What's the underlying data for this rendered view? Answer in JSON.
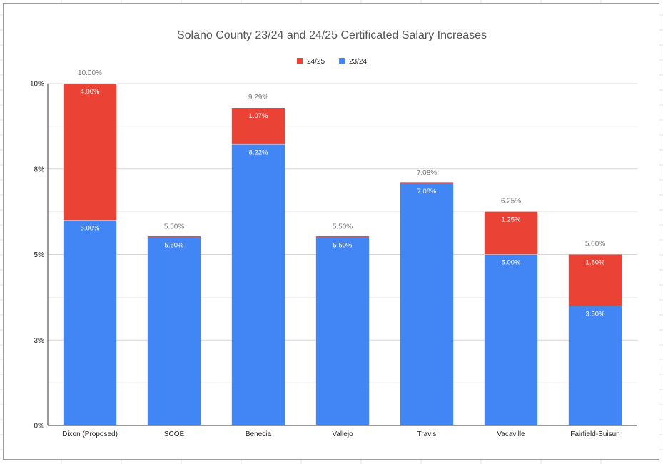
{
  "chart_data": {
    "type": "bar",
    "stacked": true,
    "title": "Solano County 23/24 and 24/25 Certificated Salary Increases",
    "xlabel": "",
    "ylabel": "",
    "ylim": [
      0,
      10
    ],
    "yticks": [
      0,
      2.5,
      5,
      7.5,
      10
    ],
    "ytick_labels": [
      "0%",
      "3%",
      "5%",
      "8%",
      "10%"
    ],
    "grid": true,
    "legend_position": "top",
    "categories": [
      "Dixon (Proposed)",
      "SCOE",
      "Benecia",
      "Vallejo",
      "Travis",
      "Vacaville",
      "Fairfield-Suisun"
    ],
    "series": [
      {
        "name": "23/24",
        "color": "#4285f4",
        "values": [
          6.0,
          5.5,
          8.22,
          5.5,
          7.08,
          5.0,
          3.5
        ],
        "labels": [
          "6.00%",
          "5.50%",
          "8.22%",
          "5.50%",
          "7.08%",
          "5.00%",
          "3.50%"
        ]
      },
      {
        "name": "24/25",
        "color": "#ea4335",
        "values": [
          4.0,
          0,
          1.07,
          0,
          0,
          1.25,
          1.5
        ],
        "labels": [
          "4.00%",
          "",
          "1.07%",
          "",
          "",
          "1.25%",
          "1.50%"
        ]
      }
    ],
    "totals": [
      "10.00%",
      "5.50%",
      "9.29%",
      "5.50%",
      "7.08%",
      "6.25%",
      "5.00%"
    ],
    "legend_order": [
      "24/25",
      "23/24"
    ]
  }
}
